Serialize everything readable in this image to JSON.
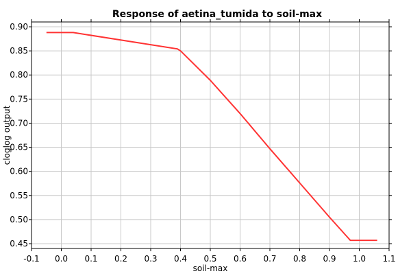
{
  "chart_data": {
    "type": "line",
    "title": "Response of aetina_tumida to soil-max",
    "xlabel": "soil-max",
    "ylabel": "cloglog output",
    "xlim": [
      -0.1,
      1.1
    ],
    "ylim": [
      0.44,
      0.91
    ],
    "xticks": [
      -0.1,
      0.0,
      0.1,
      0.2,
      0.3,
      0.4,
      0.5,
      0.6,
      0.7,
      0.8,
      0.9,
      1.0,
      1.1
    ],
    "xtick_labels": [
      "-0.1",
      "0.0",
      "0.1",
      "0.2",
      "0.3",
      "0.4",
      "0.5",
      "0.6",
      "0.7",
      "0.8",
      "0.9",
      "1.0",
      "1.1"
    ],
    "yticks": [
      0.45,
      0.5,
      0.55,
      0.6,
      0.65,
      0.7,
      0.75,
      0.8,
      0.85,
      0.9
    ],
    "ytick_labels": [
      "0.45",
      "0.50",
      "0.55",
      "0.60",
      "0.65",
      "0.70",
      "0.75",
      "0.80",
      "0.85",
      "0.90"
    ],
    "grid": true,
    "series": [
      {
        "color": "#ff3333",
        "x": [
          -0.05,
          0.04,
          0.39,
          0.4,
          0.5,
          0.6,
          0.7,
          0.8,
          0.9,
          0.97,
          1.06
        ],
        "y": [
          0.888,
          0.888,
          0.854,
          0.85,
          0.789,
          0.72,
          0.647,
          0.576,
          0.505,
          0.457,
          0.457
        ]
      }
    ]
  }
}
